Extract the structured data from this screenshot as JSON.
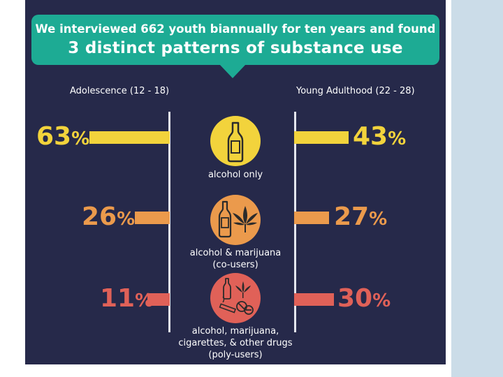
{
  "header": {
    "line1": "We interviewed 662 youth biannually for ten years and found",
    "line2": "3 distinct patterns of substance use"
  },
  "columns": {
    "left": "Adolescence (12 - 18)",
    "right": "Young Adulthood (22 - 28)"
  },
  "colors": {
    "panel": "#26294a",
    "banner": "#1dab94",
    "yellow": "#f2d33c",
    "orange": "#eb9a4c",
    "red": "#e06158"
  },
  "groups": [
    {
      "label_lines": [
        "alcohol only"
      ],
      "adolescence": {
        "value": "63",
        "unit": "%"
      },
      "young_adulthood": {
        "value": "43",
        "unit": "%"
      },
      "icons": [
        "bottle-icon"
      ]
    },
    {
      "label_lines": [
        "alcohol & marijuana",
        "(co-users)"
      ],
      "adolescence": {
        "value": "26",
        "unit": "%"
      },
      "young_adulthood": {
        "value": "27",
        "unit": "%"
      },
      "icons": [
        "bottle-icon",
        "marijuana-leaf-icon"
      ]
    },
    {
      "label_lines": [
        "alcohol, marijuana,",
        "cigarettes, & other drugs",
        "(poly-users)"
      ],
      "adolescence": {
        "value": "11",
        "unit": "%"
      },
      "young_adulthood": {
        "value": "30",
        "unit": "%"
      },
      "icons": [
        "bottle-icon",
        "marijuana-leaf-icon",
        "cigarette-icon",
        "pills-icon"
      ]
    }
  ]
}
